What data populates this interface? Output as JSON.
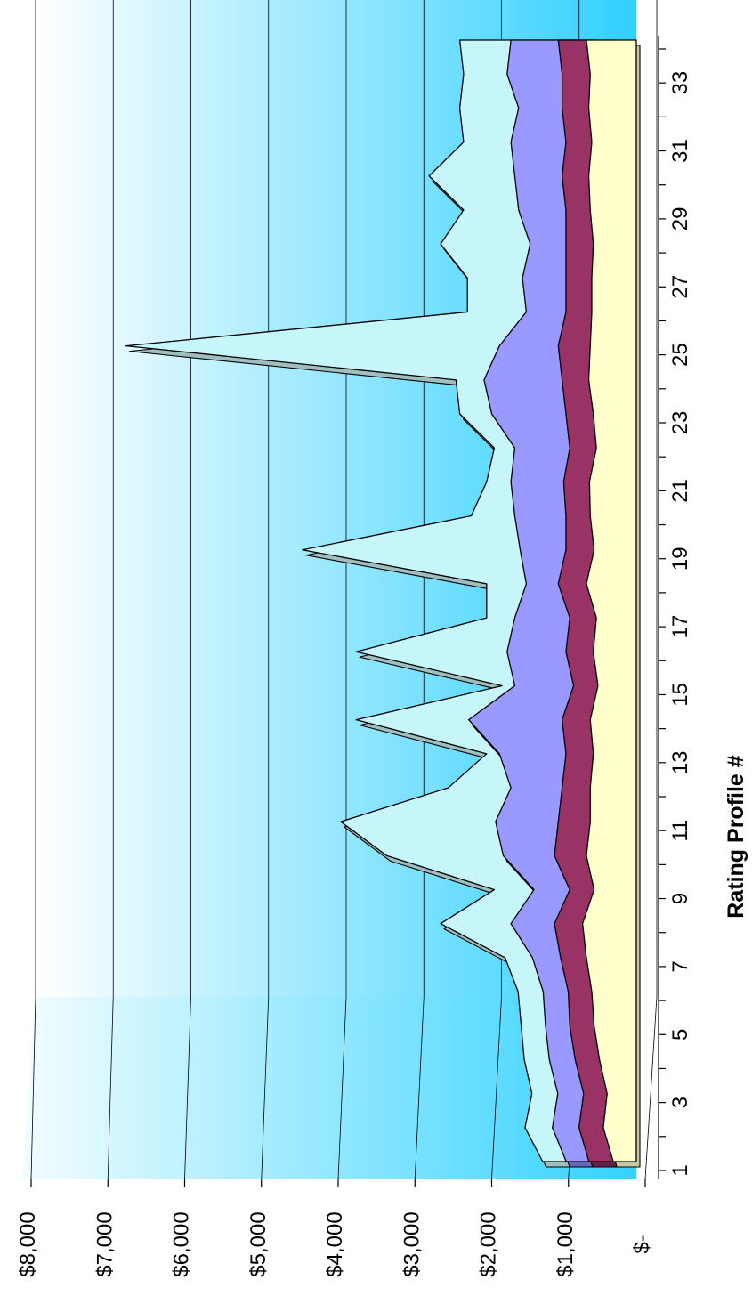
{
  "chart_data": {
    "type": "area",
    "subtype": "3d-area",
    "orientation": "rotated-90",
    "title": "",
    "xlabel": "Rating Profile #",
    "ylabel": "",
    "categories": [
      "1",
      "2",
      "3",
      "4",
      "5",
      "6",
      "7",
      "8",
      "9",
      "10",
      "11",
      "12",
      "13",
      "14",
      "15",
      "16",
      "17",
      "18",
      "19",
      "20",
      "21",
      "22",
      "23",
      "24",
      "25",
      "26",
      "27",
      "28",
      "29",
      "30",
      "31",
      "32",
      "33",
      "34"
    ],
    "x_tick_labels": [
      "1",
      "3",
      "5",
      "7",
      "9",
      "11",
      "13",
      "15",
      "17",
      "19",
      "21",
      "23",
      "25",
      "27",
      "29",
      "31",
      "33"
    ],
    "y_tick_labels": [
      "$-",
      "$1,000",
      "$2,000",
      "$3,000",
      "$4,000",
      "$5,000",
      "$6,000",
      "$7,000",
      "$8,000"
    ],
    "ylim": [
      0,
      8000
    ],
    "grid": true,
    "legend": "none",
    "series": [
      {
        "color": "#c6f6fa",
        "side_color": "#9fbfbf",
        "values": [
          420,
          650,
          560,
          660,
          700,
          740,
          910,
          1750,
          1050,
          2450,
          3050,
          1650,
          1150,
          2850,
          950,
          2850,
          1150,
          1150,
          3550,
          1350,
          1150,
          1050,
          1500,
          1550,
          5850,
          1400,
          1400,
          1750,
          1450,
          1900,
          1450,
          1500,
          1450,
          1500
        ]
      },
      {
        "color": "#9999ff",
        "side_color": "#6666bb",
        "values": [
          380,
          560,
          490,
          600,
          650,
          680,
          820,
          1100,
          800,
          1200,
          1300,
          1100,
          1250,
          1650,
          1050,
          1150,
          1050,
          900,
          980,
          1050,
          1100,
          1050,
          1350,
          1450,
          1250,
          900,
          950,
          850,
          1000,
          1050,
          1100,
          1000,
          1150,
          1100
        ]
      },
      {
        "color": "#993366",
        "side_color": "#661f44",
        "values": [
          350,
          480,
          420,
          530,
          600,
          620,
          720,
          800,
          600,
          800,
          750,
          700,
          650,
          700,
          550,
          650,
          600,
          750,
          650,
          650,
          680,
          600,
          650,
          700,
          750,
          650,
          650,
          650,
          650,
          700,
          650,
          700,
          700,
          750
        ]
      },
      {
        "color": "#ffffcc",
        "side_color": "#c8c8a0",
        "values": [
          300,
          430,
          380,
          480,
          550,
          580,
          650,
          700,
          550,
          650,
          600,
          600,
          560,
          600,
          500,
          560,
          520,
          650,
          550,
          600,
          610,
          520,
          560,
          620,
          600,
          580,
          580,
          560,
          600,
          620,
          580,
          620,
          600,
          650
        ]
      }
    ]
  }
}
